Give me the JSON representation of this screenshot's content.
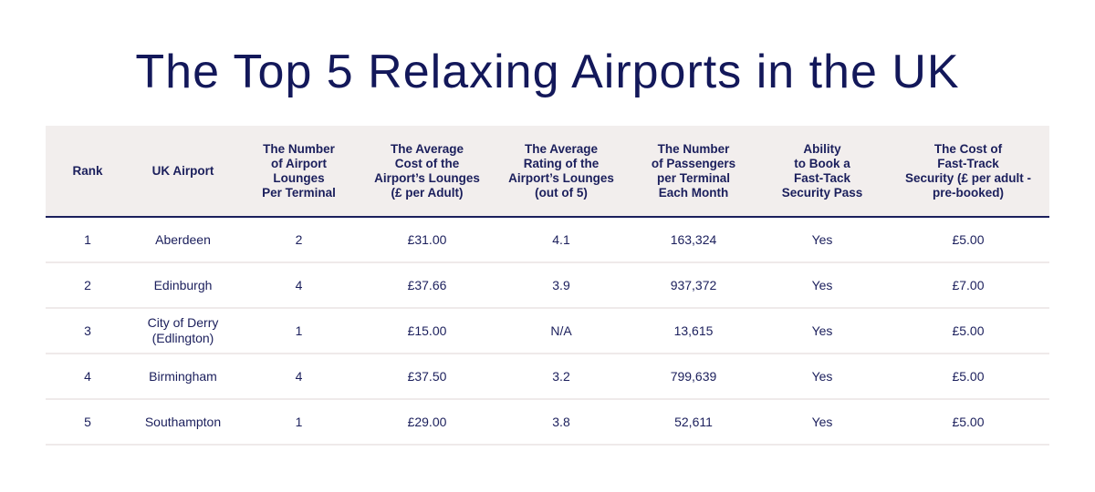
{
  "title": "The Top 5 Relaxing Airports in the UK",
  "table": {
    "headers": [
      "Rank",
      "UK Airport",
      "The Number of Airport Lounges Per Terminal",
      "The Average Cost of the Airport’s Lounges (£ per Adult)",
      "The Average Rating of the Airport’s Lounges (out of 5)",
      "The Number of Passengers per Terminal Each Month",
      "Ability to Book a Fast-Tack Security Pass",
      "The Cost of Fast-Track Security (£ per adult - pre-booked)"
    ],
    "rows": [
      [
        "1",
        "Aberdeen",
        "2",
        "£31.00",
        "4.1",
        "163,324",
        "Yes",
        "£5.00"
      ],
      [
        "2",
        "Edinburgh",
        "4",
        "£37.66",
        "3.9",
        "937,372",
        "Yes",
        "£7.00"
      ],
      [
        "3",
        "City of Derry (Edlington)",
        "1",
        "£15.00",
        "N/A",
        "13,615",
        "Yes",
        "£5.00"
      ],
      [
        "4",
        "Birmingham",
        "4",
        "£37.50",
        "3.2",
        "799,639",
        "Yes",
        "£5.00"
      ],
      [
        "5",
        "Southampton",
        "1",
        "£29.00",
        "3.8",
        "52,611",
        "Yes",
        "£5.00"
      ]
    ]
  },
  "colors": {
    "navy": "#13185a",
    "header_bg": "#f2eeed",
    "row_divider": "#efeaea"
  }
}
